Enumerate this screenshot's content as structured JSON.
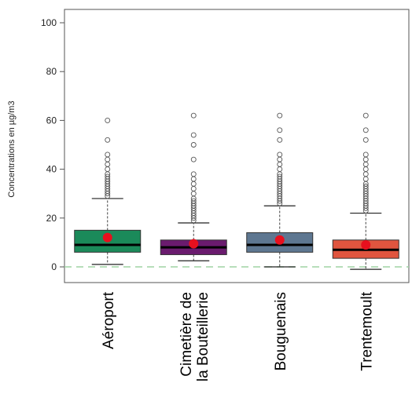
{
  "chart_data": {
    "type": "box",
    "title": "",
    "xlabel": "",
    "ylabel": "Concentrations en µg/m3",
    "ylim": [
      -5,
      103
    ],
    "yticks": [
      0,
      20,
      40,
      60,
      80,
      100
    ],
    "reference_line": 0,
    "grid": false,
    "categories": [
      "Aéroport",
      "Cimetière de\nla Bouteillerie",
      "Bouguenais",
      "Trentemoult"
    ],
    "series": [
      {
        "stats": {
          "whisker_low": 1,
          "q1": 6,
          "median": 9,
          "q3": 15,
          "whisker_high": 28,
          "mean": 12
        },
        "outliers": [
          29,
          30,
          31,
          32,
          33,
          34,
          35,
          36,
          37,
          38,
          40,
          42,
          44,
          46,
          52,
          60
        ],
        "color": "#1b8a5a"
      },
      {
        "stats": {
          "whisker_low": 2.5,
          "q1": 5,
          "median": 8,
          "q3": 11,
          "whisker_high": 18,
          "mean": 9.5
        },
        "outliers": [
          19,
          20,
          21,
          22,
          23,
          24,
          25,
          26,
          27,
          28,
          30,
          32,
          34,
          36,
          38,
          44,
          50,
          54,
          62
        ],
        "color": "#6a1b6e"
      },
      {
        "stats": {
          "whisker_low": 0,
          "q1": 6,
          "median": 9,
          "q3": 14,
          "whisker_high": 25,
          "mean": 11
        },
        "outliers": [
          26,
          27,
          28,
          29,
          30,
          31,
          32,
          33,
          34,
          35,
          36,
          37,
          38,
          40,
          42,
          44,
          46,
          52,
          56,
          62
        ],
        "color": "#5e7791"
      },
      {
        "stats": {
          "whisker_low": -1,
          "q1": 3.5,
          "median": 7,
          "q3": 11,
          "whisker_high": 22,
          "mean": 9
        },
        "outliers": [
          23,
          24,
          25,
          26,
          27,
          28,
          29,
          30,
          31,
          32,
          33,
          34,
          36,
          38,
          40,
          42,
          44,
          46,
          52,
          56,
          62
        ],
        "color": "#e0553f"
      }
    ]
  }
}
